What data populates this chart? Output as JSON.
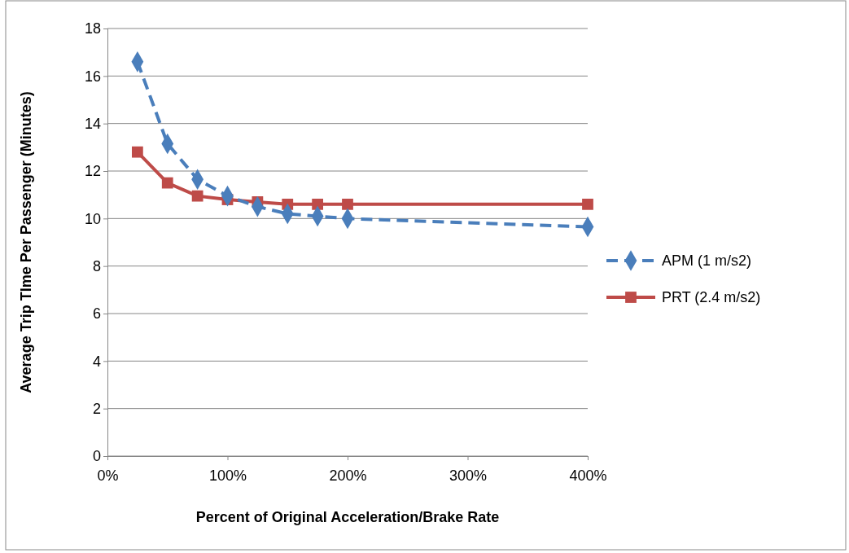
{
  "chart_data": {
    "type": "line",
    "xlabel": "Percent of Original Acceleration/Brake Rate",
    "ylabel": "Average Trip TIme Per Passenger (Minutes)",
    "x": [
      25,
      50,
      75,
      100,
      125,
      150,
      175,
      200,
      400
    ],
    "xlim": [
      0,
      400
    ],
    "xticks": [
      {
        "value": 0,
        "label": "0%"
      },
      {
        "value": 100,
        "label": "100%"
      },
      {
        "value": 200,
        "label": "200%"
      },
      {
        "value": 300,
        "label": "300%"
      },
      {
        "value": 400,
        "label": "400%"
      }
    ],
    "ylim": [
      0,
      18
    ],
    "yticks": [
      0,
      2,
      4,
      6,
      8,
      10,
      12,
      14,
      16,
      18
    ],
    "grid": "y",
    "legend": "right",
    "series": [
      {
        "name": "APM (1 m/s2)",
        "color": "#4a7ebb",
        "marker": "diamond",
        "line_style": "dashed",
        "values": [
          16.6,
          13.15,
          11.65,
          10.95,
          10.5,
          10.2,
          10.1,
          10.0,
          9.65
        ]
      },
      {
        "name": "PRT (2.4 m/s2)",
        "color": "#be4b48",
        "marker": "square",
        "line_style": "solid",
        "values": [
          12.8,
          11.5,
          10.95,
          10.8,
          10.7,
          10.6,
          10.6,
          10.6,
          10.6
        ]
      }
    ]
  }
}
